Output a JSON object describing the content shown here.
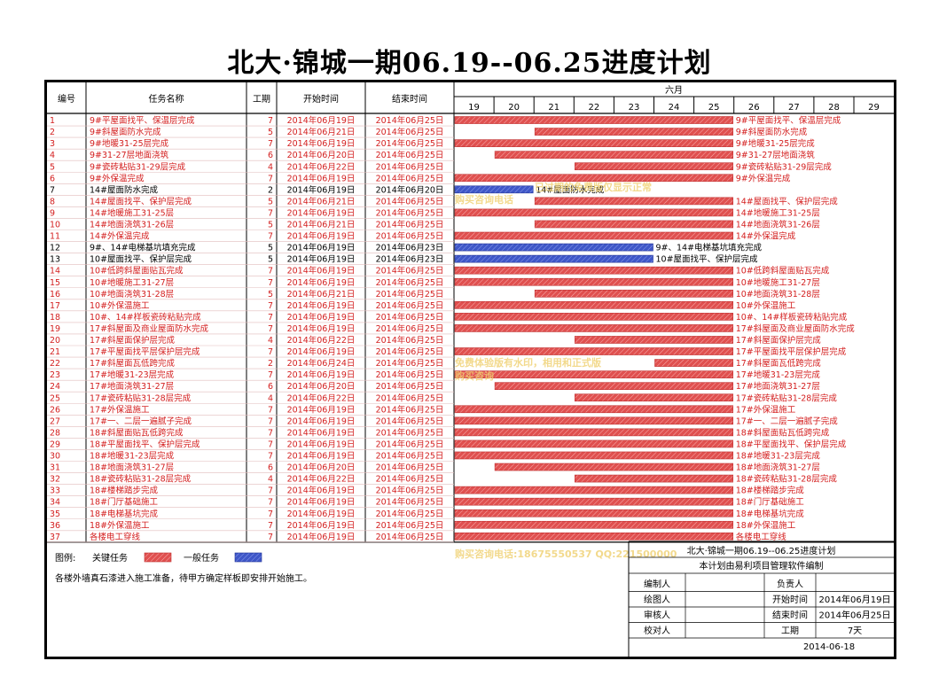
{
  "title": "北大·锦城一期06.19--06.25进度计划",
  "colors": {
    "critical": "#e0504f",
    "normal": "#3f57c8",
    "critical_text": "#d42020",
    "normal_text": "#000000"
  },
  "headers": {
    "id": "编号",
    "name": "任务名称",
    "duration": "工期",
    "start": "开始时间",
    "end": "结束时间",
    "month": "六月"
  },
  "days": [
    "19",
    "20",
    "21",
    "22",
    "23",
    "24",
    "25",
    "26",
    "27",
    "28",
    "29"
  ],
  "chart_data": {
    "type": "gantt",
    "title": "北大·锦城一期06.19--06.25进度计划",
    "x_range": [
      "2014-06-19",
      "2014-06-29"
    ],
    "tasks": [
      {
        "id": "1",
        "name": "9#平屋面找平、保温层完成",
        "duration": "7",
        "start": "2014年06月19日",
        "end": "2014年06月25日",
        "type": "critical"
      },
      {
        "id": "2",
        "name": "9#斜屋面防水完成",
        "duration": "5",
        "start": "2014年06月21日",
        "end": "2014年06月25日",
        "type": "critical"
      },
      {
        "id": "3",
        "name": "9#地暖31-25层完成",
        "duration": "7",
        "start": "2014年06月19日",
        "end": "2014年06月25日",
        "type": "critical"
      },
      {
        "id": "4",
        "name": "9#31-27层地面浇筑",
        "duration": "6",
        "start": "2014年06月20日",
        "end": "2014年06月25日",
        "type": "critical"
      },
      {
        "id": "5",
        "name": "9#瓷砖粘贴31-29层完成",
        "duration": "4",
        "start": "2014年06月22日",
        "end": "2014年06月25日",
        "type": "critical"
      },
      {
        "id": "6",
        "name": "9#外保温完成",
        "duration": "7",
        "start": "2014年06月19日",
        "end": "2014年06月25日",
        "type": "critical"
      },
      {
        "id": "7",
        "name": "14#屋面防水完成",
        "duration": "2",
        "start": "2014年06月19日",
        "end": "2014年06月20日",
        "type": "normal"
      },
      {
        "id": "8",
        "name": "14#屋面找平、保护层完成",
        "duration": "5",
        "start": "2014年06月21日",
        "end": "2014年06月25日",
        "type": "critical"
      },
      {
        "id": "9",
        "name": "14#地暖施工31-25层",
        "duration": "7",
        "start": "2014年06月19日",
        "end": "2014年06月25日",
        "type": "critical"
      },
      {
        "id": "10",
        "name": "14#地面浇筑31-26层",
        "duration": "5",
        "start": "2014年06月21日",
        "end": "2014年06月25日",
        "type": "critical"
      },
      {
        "id": "11",
        "name": "14#外保温完成",
        "duration": "7",
        "start": "2014年06月19日",
        "end": "2014年06月25日",
        "type": "critical"
      },
      {
        "id": "12",
        "name": "9#、14#电梯基坑填充完成",
        "duration": "5",
        "start": "2014年06月19日",
        "end": "2014年06月23日",
        "type": "normal"
      },
      {
        "id": "13",
        "name": "10#屋面找平、保护层完成",
        "duration": "5",
        "start": "2014年06月19日",
        "end": "2014年06月23日",
        "type": "normal"
      },
      {
        "id": "14",
        "name": "10#低跨斜屋面贴瓦完成",
        "duration": "7",
        "start": "2014年06月19日",
        "end": "2014年06月25日",
        "type": "critical"
      },
      {
        "id": "15",
        "name": "10#地暖施工31-27层",
        "duration": "7",
        "start": "2014年06月19日",
        "end": "2014年06月25日",
        "type": "critical"
      },
      {
        "id": "16",
        "name": "10#地面浇筑31-28层",
        "duration": "5",
        "start": "2014年06月21日",
        "end": "2014年06月25日",
        "type": "critical"
      },
      {
        "id": "17",
        "name": "10#外保温施工",
        "duration": "7",
        "start": "2014年06月19日",
        "end": "2014年06月25日",
        "type": "critical"
      },
      {
        "id": "18",
        "name": "10#、14#样板瓷砖粘贴完成",
        "duration": "7",
        "start": "2014年06月19日",
        "end": "2014年06月25日",
        "type": "critical"
      },
      {
        "id": "19",
        "name": "17#斜屋面及商业屋面防水完成",
        "duration": "7",
        "start": "2014年06月19日",
        "end": "2014年06月25日",
        "type": "critical"
      },
      {
        "id": "20",
        "name": "17#斜屋面保护层完成",
        "duration": "4",
        "start": "2014年06月22日",
        "end": "2014年06月25日",
        "type": "critical"
      },
      {
        "id": "21",
        "name": "17#平屋面找平层保护层完成",
        "duration": "7",
        "start": "2014年06月19日",
        "end": "2014年06月25日",
        "type": "critical"
      },
      {
        "id": "22",
        "name": "17#斜屋面瓦低跨完成",
        "duration": "2",
        "start": "2014年06月24日",
        "end": "2014年06月25日",
        "type": "critical"
      },
      {
        "id": "23",
        "name": "17#地暖31-23层完成",
        "duration": "7",
        "start": "2014年06月19日",
        "end": "2014年06月25日",
        "type": "critical"
      },
      {
        "id": "24",
        "name": "17#地面浇筑31-27层",
        "duration": "6",
        "start": "2014年06月20日",
        "end": "2014年06月25日",
        "type": "critical"
      },
      {
        "id": "25",
        "name": "17#瓷砖粘贴31-28层完成",
        "duration": "4",
        "start": "2014年06月22日",
        "end": "2014年06月25日",
        "type": "critical"
      },
      {
        "id": "26",
        "name": "17#外保温施工",
        "duration": "7",
        "start": "2014年06月19日",
        "end": "2014年06月25日",
        "type": "critical"
      },
      {
        "id": "27",
        "name": "17#一、二层一遍腻子完成",
        "duration": "7",
        "start": "2014年06月19日",
        "end": "2014年06月25日",
        "type": "critical"
      },
      {
        "id": "28",
        "name": "18#斜屋面贴瓦低跨完成",
        "duration": "7",
        "start": "2014年06月19日",
        "end": "2014年06月25日",
        "type": "critical"
      },
      {
        "id": "29",
        "name": "18#平屋面找平、保护层完成",
        "duration": "7",
        "start": "2014年06月19日",
        "end": "2014年06月25日",
        "type": "critical"
      },
      {
        "id": "30",
        "name": "18#地暖31-23层完成",
        "duration": "7",
        "start": "2014年06月19日",
        "end": "2014年06月25日",
        "type": "critical"
      },
      {
        "id": "31",
        "name": "18#地面浇筑31-27层",
        "duration": "6",
        "start": "2014年06月20日",
        "end": "2014年06月25日",
        "type": "critical"
      },
      {
        "id": "32",
        "name": "18#瓷砖粘贴31-28层完成",
        "duration": "4",
        "start": "2014年06月22日",
        "end": "2014年06月25日",
        "type": "critical"
      },
      {
        "id": "33",
        "name": "18#楼梯踏步完成",
        "duration": "7",
        "start": "2014年06月19日",
        "end": "2014年06月25日",
        "type": "critical"
      },
      {
        "id": "34",
        "name": "18#门厅基础施工",
        "duration": "7",
        "start": "2014年06月19日",
        "end": "2014年06月25日",
        "type": "critical"
      },
      {
        "id": "35",
        "name": "18#电梯基坑完成",
        "duration": "7",
        "start": "2014年06月19日",
        "end": "2014年06月25日",
        "type": "critical"
      },
      {
        "id": "36",
        "name": "18#外保温施工",
        "duration": "7",
        "start": "2014年06月19日",
        "end": "2014年06月25日",
        "type": "critical"
      },
      {
        "id": "37",
        "name": "各楼电工穿线",
        "duration": "7",
        "start": "2014年06月19日",
        "end": "2014年06月25日",
        "type": "critical"
      }
    ],
    "bars": [
      {
        "s": 19,
        "e": 25
      },
      {
        "s": 21,
        "e": 25
      },
      {
        "s": 19,
        "e": 25
      },
      {
        "s": 20,
        "e": 25
      },
      {
        "s": 22,
        "e": 25
      },
      {
        "s": 19,
        "e": 25
      },
      {
        "s": 19,
        "e": 20
      },
      {
        "s": 21,
        "e": 25
      },
      {
        "s": 19,
        "e": 25
      },
      {
        "s": 21,
        "e": 25
      },
      {
        "s": 19,
        "e": 25
      },
      {
        "s": 19,
        "e": 23
      },
      {
        "s": 19,
        "e": 23
      },
      {
        "s": 19,
        "e": 25
      },
      {
        "s": 19,
        "e": 25
      },
      {
        "s": 21,
        "e": 25
      },
      {
        "s": 19,
        "e": 25
      },
      {
        "s": 19,
        "e": 25
      },
      {
        "s": 19,
        "e": 25
      },
      {
        "s": 22,
        "e": 25
      },
      {
        "s": 19,
        "e": 25
      },
      {
        "s": 24,
        "e": 25
      },
      {
        "s": 19,
        "e": 25
      },
      {
        "s": 20,
        "e": 25
      },
      {
        "s": 22,
        "e": 25
      },
      {
        "s": 19,
        "e": 25
      },
      {
        "s": 19,
        "e": 25
      },
      {
        "s": 19,
        "e": 25
      },
      {
        "s": 19,
        "e": 25
      },
      {
        "s": 19,
        "e": 25
      },
      {
        "s": 20,
        "e": 25
      },
      {
        "s": 22,
        "e": 25
      },
      {
        "s": 19,
        "e": 25
      },
      {
        "s": 19,
        "e": 25
      },
      {
        "s": 19,
        "e": 25
      },
      {
        "s": 19,
        "e": 25
      },
      {
        "s": 19,
        "e": 25
      }
    ]
  },
  "legend": {
    "label": "图例:",
    "critical": "关键任务",
    "normal": "一般任务"
  },
  "note": "各楼外墙真石漆进入施工准备，待甲方确定样板即安排开始施工。",
  "watermarks": [
    "已过期的免费版仅显示正常",
    "购买咨询电话",
    "免费体验版有水印，相用和正式版",
    "购买咨询",
    "购买咨询电话:18675550537 QQ:221500000"
  ],
  "info_box": {
    "title": "北大·锦城一期06.19--06.25进度计划",
    "subtitle": "本计划由易利项目管理软件编制",
    "rows": [
      {
        "l1": "编制人",
        "v1": "",
        "l2": "负责人",
        "v2": ""
      },
      {
        "l1": "绘图人",
        "v1": "",
        "l2": "开始时间",
        "v2": "2014年06月19日"
      },
      {
        "l1": "审核人",
        "v1": "",
        "l2": "结束时间",
        "v2": "2014年06月25日"
      },
      {
        "l1": "校对人",
        "v1": "",
        "l2": "工期",
        "v2": "7天"
      }
    ],
    "date": "2014-06-18"
  }
}
